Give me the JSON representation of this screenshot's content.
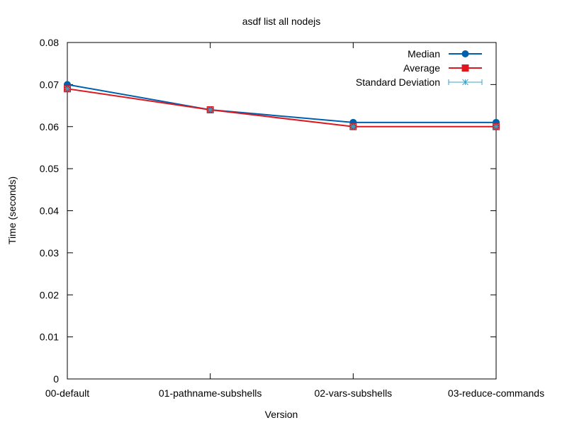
{
  "chart_data": {
    "type": "line",
    "title": "asdf list all nodejs",
    "xlabel": "Version",
    "ylabel": "Time (seconds)",
    "categories": [
      "00-default",
      "01-pathname-subshells",
      "02-vars-subshells",
      "03-reduce-commands"
    ],
    "ylim": [
      0,
      0.08
    ],
    "yticks": [
      "0",
      "0.01",
      "0.02",
      "0.03",
      "0.04",
      "0.05",
      "0.06",
      "0.07",
      "0.08"
    ],
    "grid": false,
    "legend_position": "top-right",
    "series": [
      {
        "name": "Median",
        "values": [
          0.07,
          0.064,
          0.061,
          0.061
        ],
        "color": "#0060ad",
        "marker": "circle"
      },
      {
        "name": "Average",
        "values": [
          0.069,
          0.064,
          0.06,
          0.06
        ],
        "color": "#dd181f",
        "marker": "square"
      },
      {
        "name": "Standard Deviation",
        "values": [
          0.069,
          0.064,
          0.06,
          0.06
        ],
        "color": "#3ea3c8",
        "marker": "asterisk-errorbar"
      }
    ]
  }
}
